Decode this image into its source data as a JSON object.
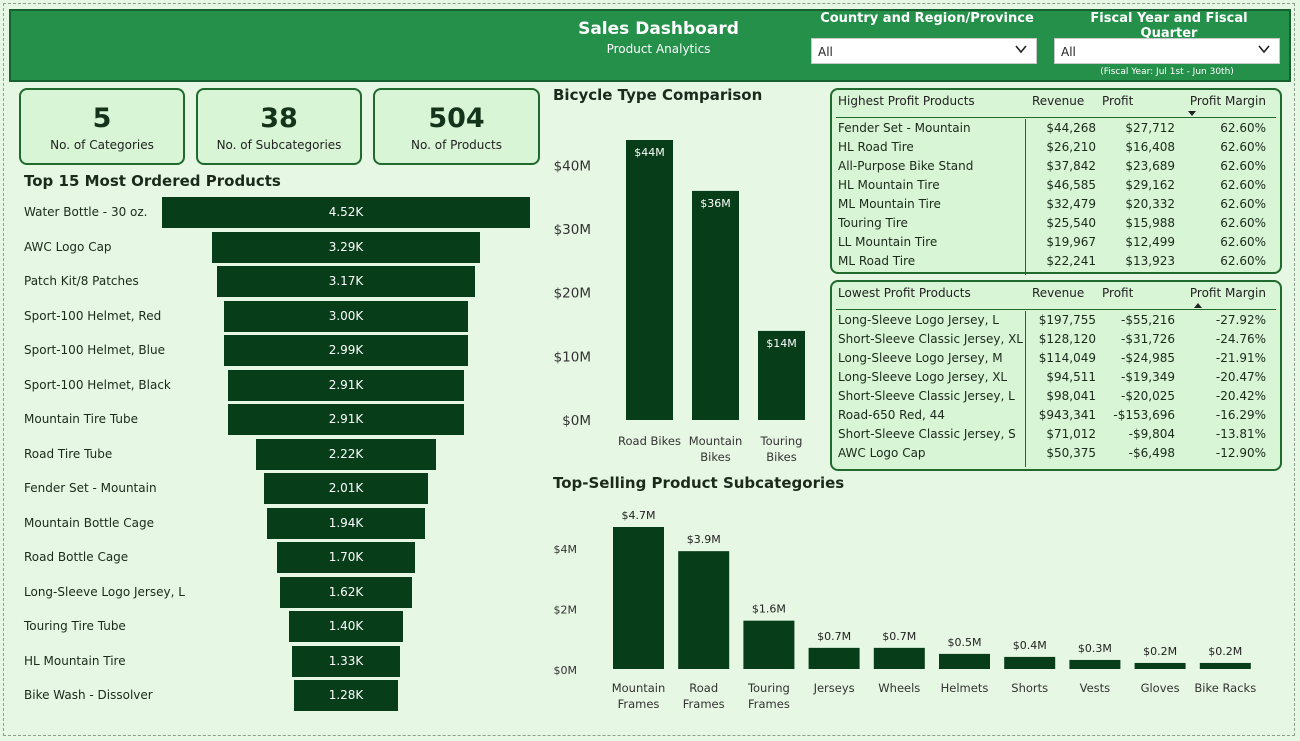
{
  "header": {
    "title": "Sales Dashboard",
    "subtitle": "Product Analytics",
    "filters": [
      {
        "label": "Country and Region/Province",
        "value": "All"
      },
      {
        "label": "Fiscal Year and Fiscal Quarter",
        "value": "All"
      }
    ],
    "fiscal_note": "(Fiscal Year: Jul 1st - Jun 30th)",
    "accent": "#24904a"
  },
  "kpis": [
    {
      "value": "5",
      "label": "No. of Categories"
    },
    {
      "value": "38",
      "label": "No. of Subcategories"
    },
    {
      "value": "504",
      "label": "No. of Products"
    }
  ],
  "funnel": {
    "title": "Top 15 Most Ordered Products",
    "items": [
      {
        "label": "Water Bottle - 30 oz.",
        "value": 4.52,
        "text": "4.52K"
      },
      {
        "label": "AWC Logo Cap",
        "value": 3.29,
        "text": "3.29K"
      },
      {
        "label": "Patch Kit/8 Patches",
        "value": 3.17,
        "text": "3.17K"
      },
      {
        "label": "Sport-100 Helmet, Red",
        "value": 3.0,
        "text": "3.00K"
      },
      {
        "label": "Sport-100 Helmet, Blue",
        "value": 2.99,
        "text": "2.99K"
      },
      {
        "label": "Sport-100 Helmet, Black",
        "value": 2.91,
        "text": "2.91K"
      },
      {
        "label": "Mountain Tire Tube",
        "value": 2.91,
        "text": "2.91K"
      },
      {
        "label": "Road Tire Tube",
        "value": 2.22,
        "text": "2.22K"
      },
      {
        "label": "Fender Set - Mountain",
        "value": 2.01,
        "text": "2.01K"
      },
      {
        "label": "Mountain Bottle Cage",
        "value": 1.94,
        "text": "1.94K"
      },
      {
        "label": "Road Bottle Cage",
        "value": 1.7,
        "text": "1.70K"
      },
      {
        "label": "Long-Sleeve Logo Jersey, L",
        "value": 1.62,
        "text": "1.62K"
      },
      {
        "label": "Touring Tire Tube",
        "value": 1.4,
        "text": "1.40K"
      },
      {
        "label": "HL Mountain Tire",
        "value": 1.33,
        "text": "1.33K"
      },
      {
        "label": "Bike Wash - Dissolver",
        "value": 1.28,
        "text": "1.28K"
      }
    ]
  },
  "chart_data": [
    {
      "type": "bar",
      "title": "Bicycle Type Comparison",
      "categories": [
        "Road Bikes",
        "Mountain Bikes",
        "Touring Bikes"
      ],
      "category_lines": [
        [
          "Road Bikes"
        ],
        [
          "Mountain",
          "Bikes"
        ],
        [
          "Touring",
          "Bikes"
        ]
      ],
      "values": [
        44,
        36,
        14
      ],
      "data_labels": [
        "$44M",
        "$36M",
        "$14M"
      ],
      "yticks": [
        "$0M",
        "$10M",
        "$20M",
        "$30M",
        "$40M"
      ],
      "ytick_values": [
        0,
        10,
        20,
        30,
        40
      ],
      "ylim": [
        0,
        44
      ],
      "grid": false,
      "color": "#073d18"
    },
    {
      "type": "bar",
      "title": "Top-Selling Product Subcategories",
      "categories": [
        "Mountain Frames",
        "Road Frames",
        "Touring Frames",
        "Jerseys",
        "Wheels",
        "Helmets",
        "Shorts",
        "Vests",
        "Gloves",
        "Bike Racks"
      ],
      "category_lines": [
        [
          "Mountain",
          "Frames"
        ],
        [
          "Road",
          "Frames"
        ],
        [
          "Touring",
          "Frames"
        ],
        [
          "Jerseys"
        ],
        [
          "Wheels"
        ],
        [
          "Helmets"
        ],
        [
          "Shorts"
        ],
        [
          "Vests"
        ],
        [
          "Gloves"
        ],
        [
          "Bike Racks"
        ]
      ],
      "values": [
        4.7,
        3.9,
        1.6,
        0.7,
        0.7,
        0.5,
        0.4,
        0.3,
        0.2,
        0.2
      ],
      "data_labels": [
        "$4.7M",
        "$3.9M",
        "$1.6M",
        "$0.7M",
        "$0.7M",
        "$0.5M",
        "$0.4M",
        "$0.3M",
        "$0.2M",
        "$0.2M"
      ],
      "yticks": [
        "$0M",
        "$2M",
        "$4M"
      ],
      "ytick_values": [
        0,
        2,
        4
      ],
      "ylim": [
        0,
        4.7
      ],
      "grid": false,
      "color": "#073d18"
    }
  ],
  "highest_table": {
    "headers": [
      "Highest Profit Products",
      "Revenue",
      "Profit",
      "Profit Margin"
    ],
    "rows": [
      [
        "Fender Set - Mountain",
        "$44,268",
        "$27,712",
        "62.60%"
      ],
      [
        "HL Road Tire",
        "$26,210",
        "$16,408",
        "62.60%"
      ],
      [
        "All-Purpose Bike Stand",
        "$37,842",
        "$23,689",
        "62.60%"
      ],
      [
        "HL Mountain Tire",
        "$46,585",
        "$29,162",
        "62.60%"
      ],
      [
        "ML Mountain Tire",
        "$32,479",
        "$20,332",
        "62.60%"
      ],
      [
        "Touring Tire",
        "$25,540",
        "$15,988",
        "62.60%"
      ],
      [
        "LL Mountain Tire",
        "$19,967",
        "$12,499",
        "62.60%"
      ],
      [
        "ML Road Tire",
        "$22,241",
        "$13,923",
        "62.60%"
      ]
    ]
  },
  "lowest_table": {
    "headers": [
      "Lowest Profit Products",
      "Revenue",
      "Profit",
      "Profit Margin"
    ],
    "rows": [
      [
        "Long-Sleeve Logo Jersey, L",
        "$197,755",
        "-$55,216",
        "-27.92%"
      ],
      [
        "Short-Sleeve Classic Jersey, XL",
        "$128,120",
        "-$31,726",
        "-24.76%"
      ],
      [
        "Long-Sleeve Logo Jersey, M",
        "$114,049",
        "-$24,985",
        "-21.91%"
      ],
      [
        "Long-Sleeve Logo Jersey, XL",
        "$94,511",
        "-$19,349",
        "-20.47%"
      ],
      [
        "Short-Sleeve Classic Jersey, L",
        "$98,041",
        "-$20,025",
        "-20.42%"
      ],
      [
        "Road-650 Red, 44",
        "$943,341",
        "-$153,696",
        "-16.29%"
      ],
      [
        "Short-Sleeve Classic Jersey, S",
        "$71,012",
        "-$9,804",
        "-13.81%"
      ],
      [
        "AWC Logo Cap",
        "$50,375",
        "-$6,498",
        "-12.90%"
      ]
    ]
  }
}
